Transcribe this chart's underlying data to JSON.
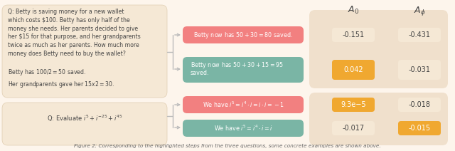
{
  "bg_color": "#fdf5ec",
  "left_box_color": "#f5e8d5",
  "left_box_edge": "#e0cdb0",
  "orange_cell_color": "#f0a830",
  "plain_cell_color": "#f5e8d5",
  "group_cell_color": "#f0e0cc",
  "step_colors": [
    "#f28080",
    "#7ab5a5",
    "#f28080",
    "#7ab5a5"
  ],
  "A0_values": [
    "-0.151",
    "0.042",
    "9.3e−5",
    "-0.017"
  ],
  "Aphi_values": [
    "-0.431",
    "-0.031",
    "-0.018",
    "-0.015"
  ],
  "A0_highlighted": [
    false,
    true,
    true,
    false
  ],
  "Aphi_highlighted": [
    false,
    false,
    false,
    true
  ],
  "col_header_A0": "$A_0$",
  "col_header_Aphi": "$A_\\phi$",
  "caption": "Figure 2: Corresponding to the highlighted steps from the three questions, some concrete examples are shown above.",
  "left_q1_text": "Q: Betty is saving money for a new wallet\nwhich costs $100. Betty has only half of the\nmoney she needs. Her parents decided to give\nher $15 for that purpose, and her grandparents\ntwice as much as her parents. How much more\nmoney does Betty need to buy the wallet?\n\nBetty has $100/2 = $50 saved.\nHer grandparents gave her $15 x 2 = $30.",
  "left_q2_text": "Q: Evaluate $i^5 + i^{-25} + i^{45}$",
  "step1_text": "Betty now has $50 + 30 = $80 saved.",
  "step2_line1": "Betty now has $50 + 30 + 15 = $95",
  "step2_line2": "saved.",
  "step3_math": "We have $i^5 = i^4 \\cdot i = i \\cdot i = -1$",
  "step4_math": "We have $i^5 = i^4 \\cdot i = i$",
  "arrow_color": "#bbbbbb",
  "text_color_dark": "#444444",
  "text_color_white": "#ffffff"
}
